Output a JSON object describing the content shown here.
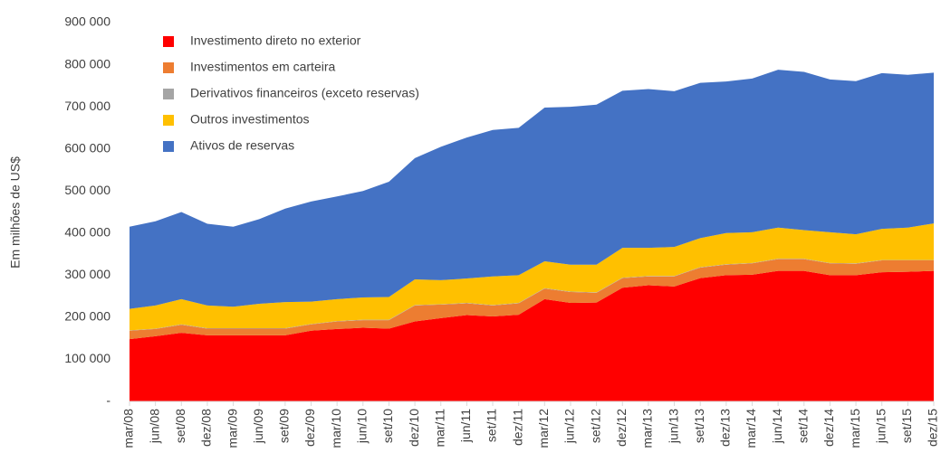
{
  "chart_data": {
    "type": "stacked_area",
    "y_axis_label": "Em milhões de US$",
    "categories": [
      "mar/08",
      "jun/08",
      "set/08",
      "dez/08",
      "mar/09",
      "jun/09",
      "set/09",
      "dez/09",
      "mar/10",
      "jun/10",
      "set/10",
      "dez/10",
      "mar/11",
      "jun/11",
      "set/11",
      "dez/11",
      "mar/12",
      "jun/12",
      "set/12",
      "dez/12",
      "mar/13",
      "jun/13",
      "set/13",
      "dez/13",
      "mar/14",
      "jun/14",
      "set/14",
      "dez/14",
      "mar/15",
      "jun/15",
      "set/15",
      "dez/15"
    ],
    "series": [
      {
        "name": "Investimento direto no exterior",
        "color": "#ff0000",
        "values": [
          148000,
          155000,
          163000,
          157000,
          157000,
          157000,
          157000,
          168000,
          172000,
          175000,
          173000,
          190000,
          198000,
          205000,
          202000,
          206000,
          243000,
          234000,
          235000,
          270000,
          276000,
          273000,
          293000,
          300000,
          301000,
          310000,
          310000,
          300000,
          300000,
          307000,
          308000,
          310000
        ]
      },
      {
        "name": "Investimentos em carteira",
        "color": "#ed7d31",
        "values": [
          20000,
          17000,
          19000,
          16000,
          16000,
          16000,
          16000,
          15000,
          18000,
          18000,
          20000,
          38000,
          32000,
          28000,
          26000,
          27000,
          25000,
          26000,
          23000,
          23000,
          21000,
          24000,
          25000,
          25000,
          27000,
          28000,
          28000,
          28000,
          27000,
          28000,
          27000,
          25000
        ]
      },
      {
        "name": "Derivativos financeiros (exceto reservas)",
        "color": "#a5a5a5",
        "values": [
          1000,
          1000,
          1000,
          1000,
          1000,
          1000,
          1000,
          1000,
          1000,
          1000,
          1000,
          1000,
          1000,
          1000,
          1000,
          1000,
          1000,
          1000,
          1000,
          1000,
          1000,
          1000,
          1000,
          1000,
          1000,
          1000,
          1000,
          1000,
          1000,
          1000,
          1000,
          1000
        ]
      },
      {
        "name": "Outros investimentos",
        "color": "#ffc000",
        "values": [
          51000,
          55000,
          60000,
          54000,
          51000,
          58000,
          62000,
          53000,
          52000,
          53000,
          54000,
          61000,
          57000,
          58000,
          68000,
          66000,
          64000,
          64000,
          66000,
          71000,
          67000,
          69000,
          69000,
          74000,
          73000,
          74000,
          68000,
          73000,
          69000,
          74000,
          77000,
          87000
        ]
      },
      {
        "name": "Ativos de reservas",
        "color": "#4472c4",
        "values": [
          195000,
          200000,
          207000,
          194000,
          190000,
          201000,
          222000,
          238000,
          244000,
          253000,
          274000,
          288000,
          317000,
          335000,
          348000,
          350000,
          365000,
          375000,
          380000,
          373000,
          377000,
          370000,
          369000,
          360000,
          365000,
          375000,
          376000,
          363000,
          364000,
          370000,
          363000,
          358000
        ]
      }
    ],
    "ylim": [
      0,
      900000
    ],
    "yticks": [
      {
        "value": 0,
        "label": "-"
      },
      {
        "value": 100000,
        "label": "100 000"
      },
      {
        "value": 200000,
        "label": "200 000"
      },
      {
        "value": 300000,
        "label": "300 000"
      },
      {
        "value": 400000,
        "label": "400 000"
      },
      {
        "value": 500000,
        "label": "500 000"
      },
      {
        "value": 600000,
        "label": "600 000"
      },
      {
        "value": 700000,
        "label": "700 000"
      },
      {
        "value": 800000,
        "label": "800 000"
      },
      {
        "value": 900000,
        "label": "900 000"
      }
    ],
    "grid": false
  }
}
